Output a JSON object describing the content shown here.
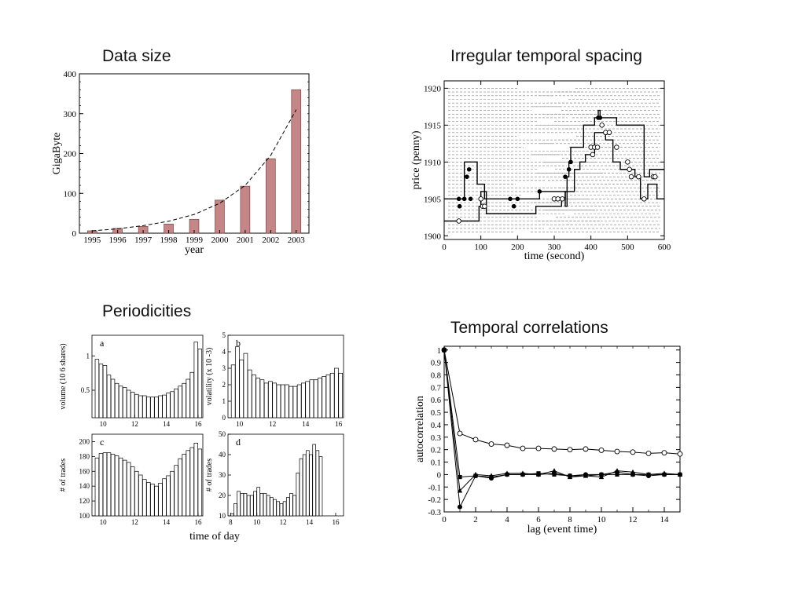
{
  "slide": {
    "captions": {
      "data_size": "Data size",
      "irregular": "Irregular temporal spacing",
      "periodicities": "Periodicities",
      "temporal": "Temporal correlations"
    }
  },
  "chart_data": [
    {
      "id": "data_size",
      "type": "bar",
      "categories": [
        "1995",
        "1996",
        "1997",
        "1998",
        "1999",
        "2000",
        "2001",
        "2002",
        "2003"
      ],
      "values": [
        6,
        12,
        17,
        23,
        35,
        83,
        118,
        187,
        360
      ],
      "trend": [
        6,
        11,
        19,
        30,
        47,
        75,
        120,
        195,
        310
      ],
      "xlabel": "year",
      "ylabel": "GigaByte",
      "ylim": [
        0,
        400
      ],
      "yticks": [
        0,
        100,
        200,
        300,
        400
      ],
      "bar_color": "#c48686",
      "trend_style": "dashed"
    },
    {
      "id": "irregular",
      "type": "line",
      "xlabel": "time (second)",
      "ylabel": "price (penny)",
      "xlim": [
        0,
        600
      ],
      "ylim": [
        1899.5,
        1921
      ],
      "xticks": [
        0,
        100,
        200,
        300,
        400,
        500,
        600
      ],
      "yticks": [
        1900,
        1905,
        1910,
        1915,
        1920
      ],
      "series": [
        {
          "x": [
            0,
            40,
            55,
            90,
            110,
            210,
            260,
            310,
            330,
            335,
            340,
            345,
            360,
            380,
            410,
            420,
            425,
            440,
            470,
            500,
            545,
            560,
            600
          ],
          "y": [
            1905,
            1905,
            1910,
            1907,
            1905,
            1905,
            1906,
            1906,
            1904,
            1908,
            1910,
            1912,
            1912,
            1915,
            1916,
            1917,
            1916,
            1916,
            1915,
            1915,
            1908,
            1909,
            1909
          ]
        },
        {
          "x": [
            0,
            80,
            95,
            100,
            115,
            200,
            250,
            300,
            320,
            330,
            355,
            370,
            385,
            410,
            440,
            460,
            480,
            520,
            535,
            555,
            580,
            600
          ],
          "y": [
            1902,
            1902,
            1904,
            1906,
            1903,
            1903,
            1904,
            1904,
            1905,
            1906,
            1909,
            1910,
            1911,
            1914,
            1913,
            1910,
            1909,
            1908,
            1905,
            1907,
            1905,
            1905
          ]
        }
      ],
      "filled_points": [
        [
          40,
          1905
        ],
        [
          42,
          1904
        ],
        [
          55,
          1905
        ],
        [
          62,
          1908
        ],
        [
          68,
          1909
        ],
        [
          72,
          1905
        ],
        [
          180,
          1905
        ],
        [
          190,
          1904
        ],
        [
          200,
          1905
        ],
        [
          260,
          1906
        ],
        [
          330,
          1908
        ],
        [
          340,
          1909
        ],
        [
          345,
          1910
        ],
        [
          420,
          1916
        ],
        [
          425,
          1916
        ]
      ],
      "open_points": [
        [
          40,
          1902
        ],
        [
          100,
          1905
        ],
        [
          105,
          1904
        ],
        [
          110,
          1904
        ],
        [
          300,
          1905
        ],
        [
          310,
          1905
        ],
        [
          322,
          1905
        ],
        [
          400,
          1912
        ],
        [
          405,
          1911
        ],
        [
          410,
          1912
        ],
        [
          418,
          1912
        ],
        [
          430,
          1915
        ],
        [
          440,
          1914
        ],
        [
          450,
          1914
        ],
        [
          470,
          1912
        ],
        [
          500,
          1910
        ],
        [
          505,
          1909
        ],
        [
          510,
          1908
        ],
        [
          530,
          1908
        ],
        [
          545,
          1905
        ],
        [
          570,
          1908
        ],
        [
          575,
          1908
        ]
      ],
      "dashed_levels": [
        1900.5,
        1901,
        1901.5,
        1902,
        1902.5,
        1903,
        1903.5,
        1904,
        1904.5,
        1905,
        1905.5,
        1906,
        1906.5,
        1907,
        1907.5,
        1908,
        1908.5,
        1909,
        1909.5,
        1910,
        1910.5,
        1911,
        1911.5,
        1912,
        1912.5,
        1913,
        1913.5,
        1914,
        1914.5,
        1915,
        1915.5,
        1916,
        1916.5,
        1917,
        1917.5,
        1918,
        1918.5,
        1919,
        1919.5,
        1920
      ]
    },
    {
      "id": "periodicities",
      "type": "bar",
      "xlabel": "time of day",
      "panels": [
        {
          "letter": "a",
          "ylabel": "volume (10 6 shares)",
          "ylim": [
            0.1,
            1.3
          ],
          "yticks": [
            0.5,
            1
          ],
          "ytick_labels": [
            "0.5",
            "1"
          ],
          "xlim": [
            9.3,
            16.3
          ],
          "xticks": [
            10,
            12,
            14,
            16
          ],
          "start": 9.5,
          "width": 0.25,
          "values": [
            0.95,
            0.88,
            0.86,
            0.72,
            0.66,
            0.6,
            0.56,
            0.54,
            0.5,
            0.47,
            0.44,
            0.42,
            0.42,
            0.4,
            0.4,
            0.4,
            0.42,
            0.43,
            0.46,
            0.48,
            0.52,
            0.56,
            0.6,
            0.66,
            0.76,
            1.2,
            1.1
          ]
        },
        {
          "letter": "b",
          "ylabel": "volatility (x 10 -3)",
          "ylim": [
            0,
            5
          ],
          "yticks": [
            0,
            1,
            2,
            3,
            4,
            5
          ],
          "ytick_labels": [
            "0",
            "1",
            "2",
            "3",
            "4",
            "5"
          ],
          "xlim": [
            9.3,
            16.3
          ],
          "xticks": [
            10,
            12,
            14,
            16
          ],
          "start": 9.5,
          "width": 0.25,
          "values": [
            3.2,
            4.3,
            3.5,
            3.9,
            2.9,
            2.6,
            2.4,
            2.3,
            2.1,
            2.2,
            2.1,
            2.0,
            2.0,
            2.0,
            1.9,
            1.9,
            2.0,
            2.1,
            2.2,
            2.3,
            2.3,
            2.4,
            2.5,
            2.6,
            2.7,
            3.0,
            2.7
          ]
        },
        {
          "letter": "c",
          "ylabel": "# of trades",
          "ylim": [
            100,
            210
          ],
          "yticks": [
            100,
            120,
            140,
            160,
            180,
            200
          ],
          "ytick_labels": [
            "100",
            "120",
            "140",
            "160",
            "180",
            "200"
          ],
          "xlim": [
            9.3,
            16.3
          ],
          "xticks": [
            10,
            12,
            14,
            16
          ],
          "start": 9.5,
          "width": 0.25,
          "values": [
            178,
            184,
            185,
            185,
            183,
            181,
            178,
            175,
            172,
            166,
            160,
            155,
            149,
            145,
            143,
            140,
            144,
            150,
            154,
            160,
            168,
            177,
            183,
            188,
            192,
            198,
            190
          ]
        },
        {
          "letter": "d",
          "ylabel": "# of trades",
          "ylim": [
            10,
            50
          ],
          "yticks": [
            10,
            20,
            30,
            40,
            50
          ],
          "ytick_labels": [
            "10",
            "20",
            "30",
            "40",
            "50"
          ],
          "xlim": [
            7.8,
            16.6
          ],
          "xticks": [
            8,
            10,
            12,
            14,
            16
          ],
          "start": 8.0,
          "width": 0.25,
          "values": [
            11,
            16,
            22,
            21,
            21,
            20,
            20,
            22,
            24,
            21,
            21,
            20,
            19,
            18,
            17,
            16,
            17,
            19,
            21,
            20,
            31,
            38,
            40,
            42,
            40,
            45,
            42,
            39
          ]
        }
      ]
    },
    {
      "id": "temporal",
      "type": "line",
      "xlabel": "lag (event time)",
      "ylabel": "autocorrelation",
      "xlim": [
        0,
        15
      ],
      "ylim": [
        -0.3,
        1.03
      ],
      "xticks": [
        0,
        2,
        4,
        6,
        8,
        10,
        12,
        14
      ],
      "yticks": [
        -0.3,
        -0.2,
        -0.1,
        0,
        0.1,
        0.2,
        0.3,
        0.4,
        0.5,
        0.6,
        0.7,
        0.8,
        0.9,
        1
      ],
      "ytick_labels": [
        "-0.3",
        "-0.2",
        "-0.1",
        "0",
        "0.1",
        "0.2",
        "0.3",
        "0.4",
        "0.5",
        "0.6",
        "0.7",
        "0.8",
        "0.9",
        "1"
      ],
      "series": [
        {
          "marker": "open-circle",
          "x": [
            0,
            1,
            2,
            3,
            4,
            5,
            6,
            7,
            8,
            9,
            10,
            11,
            12,
            13,
            14,
            15
          ],
          "y": [
            1,
            0.33,
            0.28,
            0.245,
            0.235,
            0.21,
            0.21,
            0.205,
            0.2,
            0.205,
            0.195,
            0.185,
            0.18,
            0.17,
            0.175,
            0.165
          ]
        },
        {
          "marker": "filled-circle",
          "x": [
            0,
            1,
            2,
            3,
            4,
            5,
            6,
            7,
            8,
            9,
            10,
            11,
            12,
            13,
            14,
            15
          ],
          "y": [
            1,
            -0.26,
            -0.01,
            -0.03,
            0.0,
            0.0,
            0.0,
            0.01,
            -0.01,
            0.0,
            0.0,
            0.02,
            0.0,
            -0.01,
            0.0,
            0.0
          ]
        },
        {
          "marker": "filled-square",
          "x": [
            0,
            1,
            2,
            3,
            4,
            5,
            6,
            7,
            8,
            9,
            10,
            11,
            12,
            13,
            14,
            15
          ],
          "y": [
            1,
            -0.02,
            -0.01,
            -0.02,
            0.0,
            0.0,
            0.01,
            0.0,
            -0.01,
            -0.01,
            0.0,
            0.0,
            0.0,
            0.0,
            0.0,
            0.0
          ]
        },
        {
          "marker": "filled-triangle",
          "x": [
            0,
            1,
            2,
            3,
            4,
            5,
            6,
            7,
            8,
            9,
            10,
            11,
            12,
            13,
            14,
            15
          ],
          "y": [
            1,
            -0.13,
            0.0,
            -0.01,
            0.01,
            0.01,
            0.0,
            0.03,
            -0.02,
            -0.01,
            -0.02,
            0.03,
            0.02,
            0.0,
            0.01,
            0.0
          ]
        }
      ]
    }
  ]
}
